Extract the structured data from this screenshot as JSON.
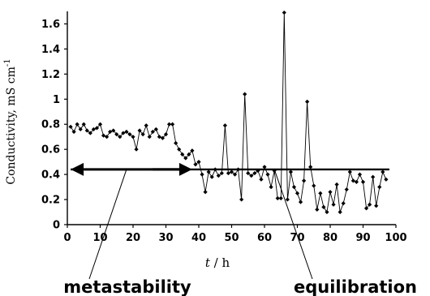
{
  "chart_data": {
    "type": "line",
    "title": "",
    "xlabel_var": "t",
    "xlabel_unit": " / h",
    "ylabel_text": "Conductivity, mS cm",
    "ylabel_sup": "-1",
    "xlim": [
      0,
      100
    ],
    "ylim": [
      0,
      1.7
    ],
    "xticks": [
      "0",
      "10",
      "20",
      "30",
      "40",
      "50",
      "60",
      "70",
      "80",
      "90",
      "100"
    ],
    "yticks": [
      "0",
      "0.2",
      "0.4",
      "0.6",
      "0.8",
      "1",
      "1.2",
      "1.4",
      "1.6"
    ],
    "grid": false,
    "legend": "none",
    "series": [
      {
        "marker": "diamond",
        "color": "#000000",
        "x": [
          1,
          2,
          3,
          4,
          5,
          6,
          7,
          8,
          9,
          10,
          11,
          12,
          13,
          14,
          15,
          16,
          17,
          18,
          19,
          20,
          21,
          22,
          23,
          24,
          25,
          26,
          27,
          28,
          29,
          30,
          31,
          32,
          33,
          34,
          35,
          36,
          37,
          38,
          39,
          40,
          41,
          42,
          43,
          44,
          45,
          46,
          47,
          48,
          49,
          50,
          51,
          52,
          53,
          54,
          55,
          56,
          57,
          58,
          59,
          60,
          61,
          62,
          63,
          64,
          65,
          66,
          67,
          68,
          69,
          70,
          71,
          72,
          73,
          74,
          75,
          76,
          77,
          78,
          79,
          80,
          81,
          82,
          83,
          84,
          85,
          86,
          87,
          88,
          89,
          90,
          91,
          92,
          93,
          94,
          95,
          96,
          97
        ],
        "y": [
          0.78,
          0.74,
          0.8,
          0.76,
          0.8,
          0.75,
          0.73,
          0.76,
          0.77,
          0.8,
          0.71,
          0.7,
          0.74,
          0.75,
          0.72,
          0.7,
          0.73,
          0.74,
          0.72,
          0.7,
          0.6,
          0.75,
          0.72,
          0.79,
          0.7,
          0.74,
          0.76,
          0.7,
          0.69,
          0.72,
          0.8,
          0.8,
          0.65,
          0.6,
          0.56,
          0.53,
          0.56,
          0.59,
          0.48,
          0.5,
          0.4,
          0.26,
          0.42,
          0.38,
          0.44,
          0.39,
          0.41,
          0.79,
          0.41,
          0.42,
          0.4,
          0.44,
          0.2,
          1.04,
          0.41,
          0.39,
          0.41,
          0.43,
          0.36,
          0.46,
          0.4,
          0.3,
          0.43,
          0.21,
          0.21,
          1.69,
          0.2,
          0.42,
          0.3,
          0.25,
          0.18,
          0.35,
          0.98,
          0.46,
          0.31,
          0.12,
          0.25,
          0.14,
          0.1,
          0.26,
          0.16,
          0.32,
          0.1,
          0.17,
          0.28,
          0.42,
          0.35,
          0.34,
          0.4,
          0.34,
          0.13,
          0.16,
          0.38,
          0.15,
          0.3,
          0.42,
          0.36
        ]
      }
    ],
    "reference_line": {
      "y": 0.44,
      "x_from": 1,
      "x_to": 98
    },
    "arrows": [
      {
        "x_from": 36,
        "x_to": 1,
        "y": 0.44
      },
      {
        "x_from": 26,
        "x_to": 38,
        "y": 0.44
      }
    ],
    "annotations": [
      {
        "text": "metastability",
        "from_x": 18,
        "from_y": 0.44
      },
      {
        "text": "equilibration",
        "from_x": 63,
        "from_y": 0.44
      }
    ]
  }
}
